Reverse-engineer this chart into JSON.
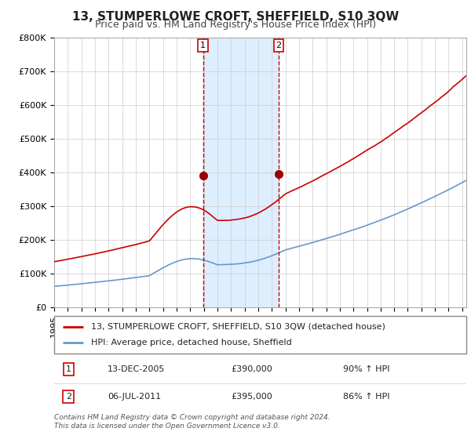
{
  "title": "13, STUMPERLOWE CROFT, SHEFFIELD, S10 3QW",
  "subtitle": "Price paid vs. HM Land Registry's House Price Index (HPI)",
  "ylim": [
    0,
    800000
  ],
  "yticks": [
    0,
    100000,
    200000,
    300000,
    400000,
    500000,
    600000,
    700000,
    800000
  ],
  "ytick_labels": [
    "£0",
    "£100K",
    "£200K",
    "£300K",
    "£400K",
    "£500K",
    "£600K",
    "£700K",
    "£800K"
  ],
  "xlim_start": 1995.0,
  "xlim_end": 2025.3,
  "purchase1_date": 2005.95,
  "purchase1_price": 390000,
  "purchase1_label": "13-DEC-2005",
  "purchase2_date": 2011.5,
  "purchase2_price": 395000,
  "purchase2_label": "06-JUL-2011",
  "line1_color": "#cc0000",
  "line2_color": "#6699cc",
  "highlight_color": "#ddeeff",
  "dashed_line_color": "#cc0000",
  "marker_color": "#990000",
  "grid_color": "#cccccc",
  "bg_color": "#ffffff",
  "legend_border_color": "#888888",
  "label1": "13, STUMPERLOWE CROFT, SHEFFIELD, S10 3QW (detached house)",
  "label2": "HPI: Average price, detached house, Sheffield",
  "footnote_line1": "Contains HM Land Registry data © Crown copyright and database right 2024.",
  "footnote_line2": "This data is licensed under the Open Government Licence v3.0.",
  "title_fontsize": 11,
  "subtitle_fontsize": 9,
  "tick_fontsize": 8,
  "legend_fontsize": 8,
  "footnote_fontsize": 6.5
}
